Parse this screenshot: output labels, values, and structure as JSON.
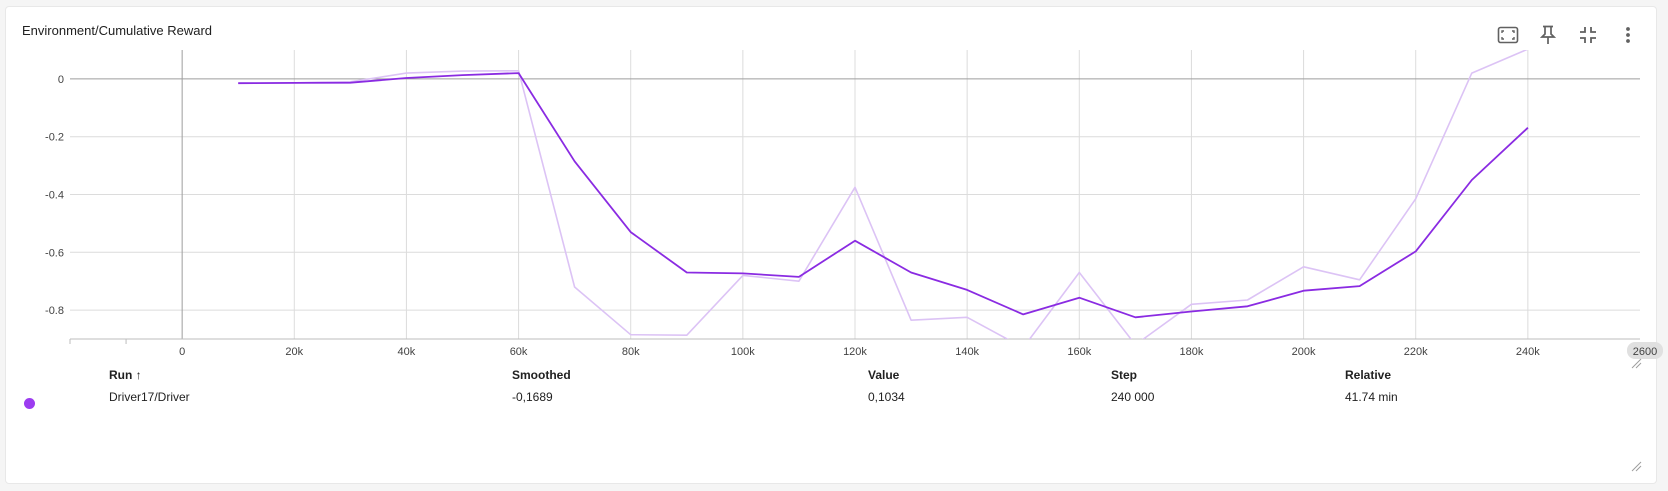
{
  "card": {
    "title": "Environment/Cumulative Reward"
  },
  "toolbar": {
    "icons": [
      "fit-screen-icon",
      "pin-icon",
      "collapse-icon",
      "more-vert-icon"
    ]
  },
  "colors": {
    "smoothed": "#8a2be2",
    "raw": "#dcc3f5",
    "grid": "#dcdcdc",
    "zero_axis": "#9e9e9e",
    "dot": "#9c3cf0"
  },
  "chart_data": {
    "type": "line",
    "xlim": [
      -20000,
      260000
    ],
    "ylim": [
      -0.9,
      0.1
    ],
    "x_ticks": [
      0,
      20000,
      40000,
      60000,
      80000,
      100000,
      120000,
      140000,
      160000,
      180000,
      200000,
      220000,
      240000
    ],
    "x_tick_labels": [
      "0",
      "20k",
      "40k",
      "60k",
      "80k",
      "100k",
      "120k",
      "140k",
      "160k",
      "180k",
      "200k",
      "220k",
      "240k"
    ],
    "x_end_label": "2600",
    "y_ticks": [
      0,
      -0.2,
      -0.4,
      -0.6,
      -0.8
    ],
    "y_tick_labels": [
      "0",
      "-0.2",
      "-0.4",
      "-0.6",
      "-0.8"
    ],
    "grid": true,
    "series": [
      {
        "role": "raw",
        "x": [
          10000,
          20000,
          30000,
          40000,
          50000,
          60000,
          70000,
          80000,
          90000,
          100000,
          110000,
          120000,
          130000,
          140000,
          150000,
          160000,
          170000,
          180000,
          190000,
          200000,
          210000,
          220000,
          230000,
          240000
        ],
        "y": [
          -0.015,
          -0.014,
          -0.01,
          0.02,
          0.027,
          0.028,
          -0.72,
          -0.885,
          -0.887,
          -0.68,
          -0.7,
          -0.375,
          -0.835,
          -0.825,
          -0.93,
          -0.67,
          -0.92,
          -0.78,
          -0.765,
          -0.65,
          -0.695,
          -0.415,
          0.02,
          0.103
        ]
      },
      {
        "role": "smoothed",
        "x": [
          10000,
          20000,
          30000,
          40000,
          50000,
          60000,
          70000,
          80000,
          90000,
          100000,
          110000,
          120000,
          130000,
          140000,
          150000,
          160000,
          170000,
          180000,
          190000,
          200000,
          210000,
          220000,
          230000,
          240000
        ],
        "y": [
          -0.015,
          -0.014,
          -0.013,
          0.003,
          0.013,
          0.02,
          -0.285,
          -0.53,
          -0.67,
          -0.673,
          -0.685,
          -0.56,
          -0.67,
          -0.73,
          -0.815,
          -0.757,
          -0.825,
          -0.805,
          -0.787,
          -0.733,
          -0.717,
          -0.597,
          -0.35,
          -0.169
        ]
      }
    ]
  },
  "table": {
    "headers": {
      "run": "Run ↑",
      "smoothed": "Smoothed",
      "value": "Value",
      "step": "Step",
      "relative": "Relative"
    },
    "row": {
      "run": "Driver17/Driver",
      "smoothed": "-0,1689",
      "value": "0,1034",
      "step": "240 000",
      "relative": "41.74 min"
    }
  }
}
